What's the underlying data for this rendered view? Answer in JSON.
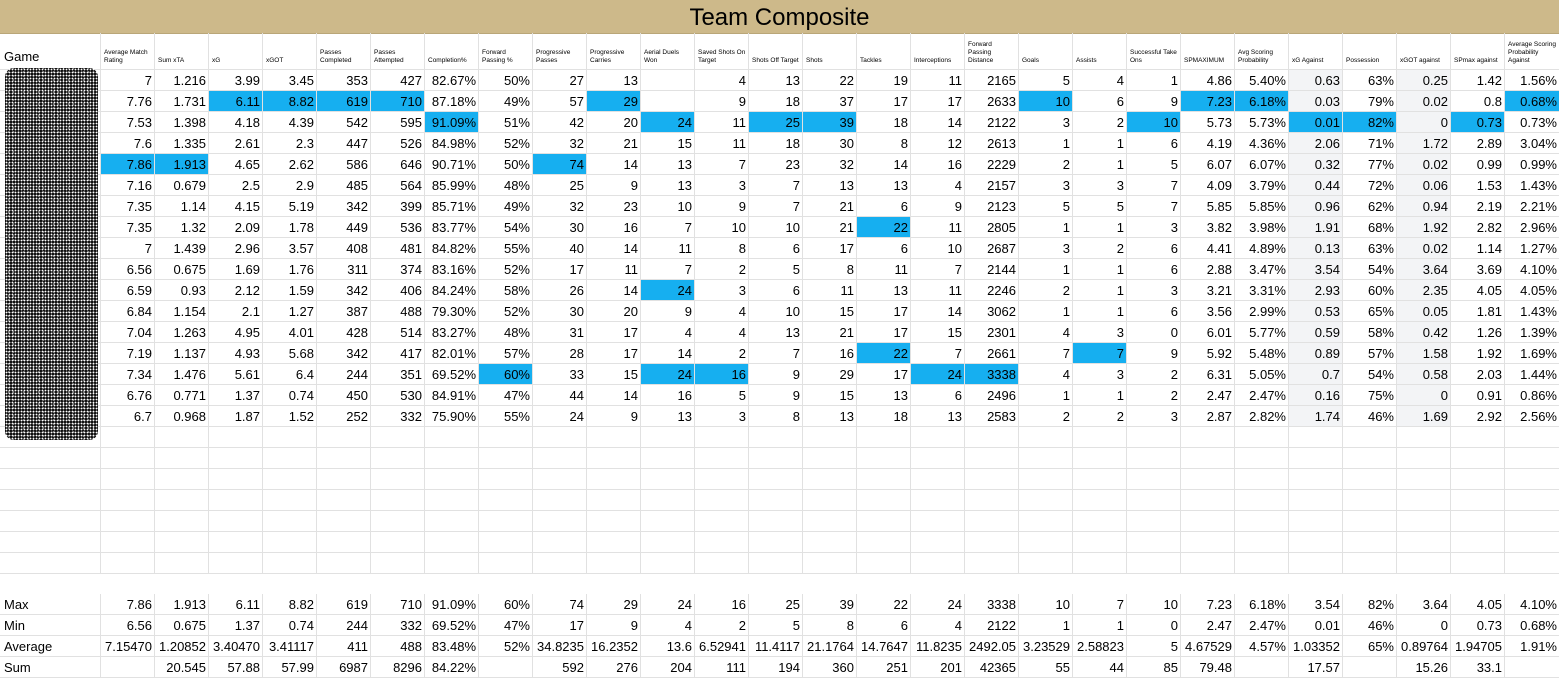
{
  "title": "Team Composite",
  "game_header": "Game",
  "columns": [
    "Average Match Rating",
    "Sum xTA",
    "xG",
    "xGOT",
    "Passes Completed",
    "Passes Attempted",
    "Completion%",
    "Forward Passing %",
    "Progressive Passes",
    "Progressive Carries",
    "Aerial Duels Won",
    "Saved Shots On Target",
    "Shots Off Target",
    "Shots",
    "Tackles",
    "Interceptions",
    "Forward Passing Distance",
    "Goals",
    "Assists",
    "Successful Take Ons",
    "SPMAXIMUM",
    "Avg Scoring Probability",
    "xG Against",
    "Possession",
    "xGOT against",
    "SPmax against",
    "Average Scoring Probability Against"
  ],
  "rows": [
    [
      7,
      1.216,
      3.99,
      3.45,
      353,
      427,
      "82.67%",
      "50%",
      27,
      13,
      null,
      4,
      13,
      22,
      19,
      11,
      2165,
      5,
      4,
      1,
      4.86,
      "5.40%",
      0.63,
      "63%",
      0.25,
      1.42,
      "1.56%"
    ],
    [
      7.76,
      1.731,
      6.11,
      8.82,
      619,
      710,
      "87.18%",
      "49%",
      57,
      29,
      null,
      9,
      18,
      37,
      17,
      17,
      2633,
      10,
      6,
      9,
      7.23,
      "6.18%",
      0.03,
      "79%",
      0.02,
      0.8,
      "0.68%"
    ],
    [
      7.53,
      1.398,
      4.18,
      4.39,
      542,
      595,
      "91.09%",
      "51%",
      42,
      20,
      24,
      11,
      25,
      39,
      18,
      14,
      2122,
      3,
      2,
      10,
      5.73,
      "5.73%",
      0.01,
      "82%",
      0,
      0.73,
      "0.73%"
    ],
    [
      7.6,
      1.335,
      2.61,
      2.3,
      447,
      526,
      "84.98%",
      "52%",
      32,
      21,
      15,
      11,
      18,
      30,
      8,
      12,
      2613,
      1,
      1,
      6,
      4.19,
      "4.36%",
      2.06,
      "71%",
      1.72,
      2.89,
      "3.04%"
    ],
    [
      7.86,
      1.913,
      4.65,
      2.62,
      586,
      646,
      "90.71%",
      "50%",
      74,
      14,
      13,
      7,
      23,
      32,
      14,
      16,
      2229,
      2,
      1,
      5,
      6.07,
      "6.07%",
      0.32,
      "77%",
      0.02,
      0.99,
      "0.99%"
    ],
    [
      7.16,
      0.679,
      2.5,
      2.9,
      485,
      564,
      "85.99%",
      "48%",
      25,
      9,
      13,
      3,
      7,
      13,
      13,
      4,
      2157,
      3,
      3,
      7,
      4.09,
      "3.79%",
      0.44,
      "72%",
      0.06,
      1.53,
      "1.43%"
    ],
    [
      7.35,
      1.14,
      4.15,
      5.19,
      342,
      399,
      "85.71%",
      "49%",
      32,
      23,
      10,
      9,
      7,
      21,
      6,
      9,
      2123,
      5,
      5,
      7,
      5.85,
      "5.85%",
      0.96,
      "62%",
      0.94,
      2.19,
      "2.21%"
    ],
    [
      7.35,
      1.32,
      2.09,
      1.78,
      449,
      536,
      "83.77%",
      "54%",
      30,
      16,
      7,
      10,
      10,
      21,
      22,
      11,
      2805,
      1,
      1,
      3,
      3.82,
      "3.98%",
      1.91,
      "68%",
      1.92,
      2.82,
      "2.96%"
    ],
    [
      7,
      1.439,
      2.96,
      3.57,
      408,
      481,
      "84.82%",
      "55%",
      40,
      14,
      11,
      8,
      6,
      17,
      6,
      10,
      2687,
      3,
      2,
      6,
      4.41,
      "4.89%",
      0.13,
      "63%",
      0.02,
      1.14,
      "1.27%"
    ],
    [
      6.56,
      0.675,
      1.69,
      1.76,
      311,
      374,
      "83.16%",
      "52%",
      17,
      11,
      7,
      2,
      5,
      8,
      11,
      7,
      2144,
      1,
      1,
      6,
      2.88,
      "3.47%",
      3.54,
      "54%",
      3.64,
      3.69,
      "4.10%"
    ],
    [
      6.59,
      0.93,
      2.12,
      1.59,
      342,
      406,
      "84.24%",
      "58%",
      26,
      14,
      24,
      3,
      6,
      11,
      13,
      11,
      2246,
      2,
      1,
      3,
      3.21,
      "3.31%",
      2.93,
      "60%",
      2.35,
      4.05,
      "4.05%"
    ],
    [
      6.84,
      1.154,
      2.1,
      1.27,
      387,
      488,
      "79.30%",
      "52%",
      30,
      20,
      9,
      4,
      10,
      15,
      17,
      14,
      3062,
      1,
      1,
      6,
      3.56,
      "2.99%",
      0.53,
      "65%",
      0.05,
      1.81,
      "1.43%"
    ],
    [
      7.04,
      1.263,
      4.95,
      4.01,
      428,
      514,
      "83.27%",
      "48%",
      31,
      17,
      4,
      4,
      13,
      21,
      17,
      15,
      2301,
      4,
      3,
      0,
      6.01,
      "5.77%",
      0.59,
      "58%",
      0.42,
      1.26,
      "1.39%"
    ],
    [
      7.19,
      1.137,
      4.93,
      5.68,
      342,
      417,
      "82.01%",
      "57%",
      28,
      17,
      14,
      2,
      7,
      16,
      22,
      7,
      2661,
      7,
      7,
      9,
      5.92,
      "5.48%",
      0.89,
      "57%",
      1.58,
      1.92,
      "1.69%"
    ],
    [
      7.34,
      1.476,
      5.61,
      6.4,
      244,
      351,
      "69.52%",
      "60%",
      33,
      15,
      24,
      16,
      9,
      29,
      17,
      24,
      3338,
      4,
      3,
      2,
      6.31,
      "5.05%",
      0.7,
      "54%",
      0.58,
      2.03,
      "1.44%"
    ],
    [
      6.76,
      0.771,
      1.37,
      0.74,
      450,
      530,
      "84.91%",
      "47%",
      44,
      14,
      16,
      5,
      9,
      15,
      13,
      6,
      2496,
      1,
      1,
      2,
      2.47,
      "2.47%",
      0.16,
      "75%",
      0,
      0.91,
      "0.86%"
    ],
    [
      6.7,
      0.968,
      1.87,
      1.52,
      252,
      332,
      "75.90%",
      "55%",
      24,
      9,
      13,
      3,
      8,
      13,
      18,
      13,
      2583,
      2,
      2,
      3,
      2.87,
      "2.82%",
      1.74,
      "46%",
      1.69,
      2.92,
      "2.56%"
    ]
  ],
  "summary": [
    {
      "label": "Max",
      "values": [
        7.86,
        1.913,
        6.11,
        8.82,
        619,
        710,
        "91.09%",
        "60%",
        74,
        29,
        24,
        16,
        25,
        39,
        22,
        24,
        3338,
        10,
        7,
        10,
        7.23,
        "6.18%",
        3.54,
        "82%",
        3.64,
        4.05,
        "4.10%"
      ]
    },
    {
      "label": "Min",
      "values": [
        6.56,
        0.675,
        1.37,
        0.74,
        244,
        332,
        "69.52%",
        "47%",
        17,
        9,
        4,
        2,
        5,
        8,
        6,
        4,
        2122,
        1,
        1,
        0,
        2.47,
        "2.47%",
        0.01,
        "46%",
        0,
        0.73,
        "0.68%"
      ]
    },
    {
      "label": "Average",
      "values": [
        "7.15470",
        "1.20852",
        "3.40470",
        "3.41117",
        411,
        488,
        "83.48%",
        "52%",
        "34.8235",
        "16.2352",
        13.6,
        "6.52941",
        "11.4117",
        "21.1764",
        "14.7647",
        "11.8235",
        "2492.05",
        "3.23529",
        "2.58823",
        5,
        "4.67529",
        "4.57%",
        "1.03352",
        "65%",
        "0.89764",
        "1.94705",
        "1.91%"
      ]
    },
    {
      "label": "Sum",
      "values": [
        null,
        20.545,
        57.88,
        57.99,
        6987,
        8296,
        "84.22%",
        null,
        592,
        276,
        204,
        111,
        194,
        360,
        251,
        201,
        42365,
        55,
        44,
        85,
        79.48,
        null,
        17.57,
        null,
        15.26,
        33.1,
        null
      ]
    }
  ],
  "highlights": [
    [
      1,
      2
    ],
    [
      1,
      3
    ],
    [
      1,
      4
    ],
    [
      1,
      5
    ],
    [
      1,
      9
    ],
    [
      1,
      17
    ],
    [
      1,
      20
    ],
    [
      1,
      21
    ],
    [
      1,
      26
    ],
    [
      2,
      6
    ],
    [
      2,
      10
    ],
    [
      2,
      12
    ],
    [
      2,
      13
    ],
    [
      2,
      19
    ],
    [
      2,
      22
    ],
    [
      2,
      23
    ],
    [
      2,
      25
    ],
    [
      4,
      0
    ],
    [
      4,
      1
    ],
    [
      4,
      8
    ],
    [
      7,
      14
    ],
    [
      10,
      10
    ],
    [
      13,
      14
    ],
    [
      13,
      18
    ],
    [
      14,
      7
    ],
    [
      14,
      10
    ],
    [
      14,
      11
    ],
    [
      14,
      15
    ],
    [
      14,
      16
    ]
  ],
  "shaded_columns": [
    22,
    24
  ]
}
